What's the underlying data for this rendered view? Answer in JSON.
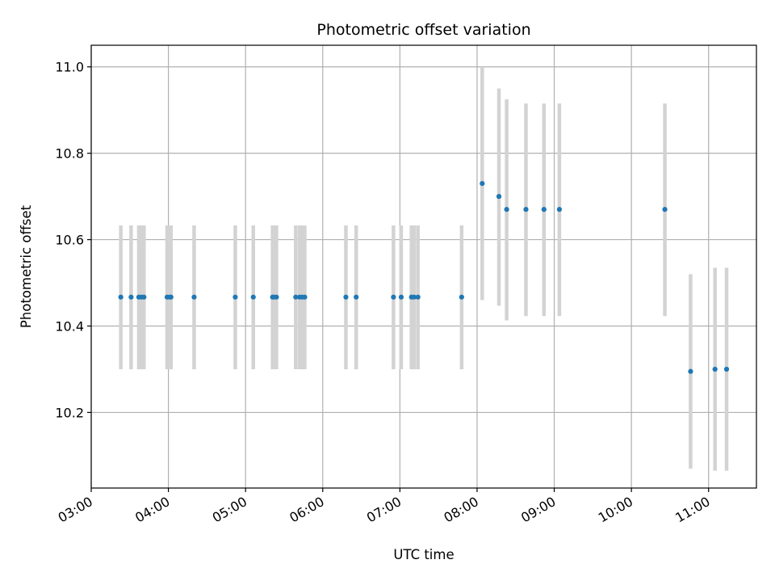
{
  "chart_data": {
    "type": "scatter",
    "title": "Photometric offset variation",
    "xlabel": "UTC time",
    "ylabel": "Photometric offset",
    "x_unit": "UTC hours",
    "xlim": [
      3.0,
      11.62
    ],
    "ylim": [
      10.025,
      11.05
    ],
    "x_ticks": [
      {
        "value": 3,
        "label": "03:00"
      },
      {
        "value": 4,
        "label": "04:00"
      },
      {
        "value": 5,
        "label": "05:00"
      },
      {
        "value": 6,
        "label": "06:00"
      },
      {
        "value": 7,
        "label": "07:00"
      },
      {
        "value": 8,
        "label": "08:00"
      },
      {
        "value": 9,
        "label": "09:00"
      },
      {
        "value": 10,
        "label": "10:00"
      },
      {
        "value": 11,
        "label": "11:00"
      }
    ],
    "y_ticks": [
      {
        "value": 10.2,
        "label": "10.2"
      },
      {
        "value": 10.4,
        "label": "10.4"
      },
      {
        "value": 10.6,
        "label": "10.6"
      },
      {
        "value": 10.8,
        "label": "10.8"
      },
      {
        "value": 11.0,
        "label": "11.0"
      }
    ],
    "grid": true,
    "marker_color": "#1f77b4",
    "errorbar_color": "#d3d3d3",
    "points": [
      {
        "time": "03:23",
        "y": 10.467,
        "ylow": 10.3,
        "yhigh": 10.633
      },
      {
        "time": "03:31",
        "y": 10.467,
        "ylow": 10.3,
        "yhigh": 10.633
      },
      {
        "time": "03:37",
        "y": 10.467,
        "ylow": 10.3,
        "yhigh": 10.633
      },
      {
        "time": "03:39",
        "y": 10.467,
        "ylow": 10.3,
        "yhigh": 10.633
      },
      {
        "time": "03:41",
        "y": 10.467,
        "ylow": 10.3,
        "yhigh": 10.633
      },
      {
        "time": "03:59",
        "y": 10.467,
        "ylow": 10.3,
        "yhigh": 10.633
      },
      {
        "time": "04:01",
        "y": 10.467,
        "ylow": 10.3,
        "yhigh": 10.633
      },
      {
        "time": "04:02",
        "y": 10.467,
        "ylow": 10.3,
        "yhigh": 10.633
      },
      {
        "time": "04:20",
        "y": 10.467,
        "ylow": 10.3,
        "yhigh": 10.633
      },
      {
        "time": "04:52",
        "y": 10.467,
        "ylow": 10.3,
        "yhigh": 10.633
      },
      {
        "time": "05:06",
        "y": 10.467,
        "ylow": 10.3,
        "yhigh": 10.633
      },
      {
        "time": "05:21",
        "y": 10.467,
        "ylow": 10.3,
        "yhigh": 10.633
      },
      {
        "time": "05:22",
        "y": 10.467,
        "ylow": 10.3,
        "yhigh": 10.633
      },
      {
        "time": "05:24",
        "y": 10.467,
        "ylow": 10.3,
        "yhigh": 10.633
      },
      {
        "time": "05:39",
        "y": 10.467,
        "ylow": 10.3,
        "yhigh": 10.633
      },
      {
        "time": "05:42",
        "y": 10.467,
        "ylow": 10.3,
        "yhigh": 10.633
      },
      {
        "time": "05:44",
        "y": 10.467,
        "ylow": 10.3,
        "yhigh": 10.633
      },
      {
        "time": "05:46",
        "y": 10.467,
        "ylow": 10.3,
        "yhigh": 10.633
      },
      {
        "time": "06:18",
        "y": 10.467,
        "ylow": 10.3,
        "yhigh": 10.633
      },
      {
        "time": "06:26",
        "y": 10.467,
        "ylow": 10.3,
        "yhigh": 10.633
      },
      {
        "time": "06:55",
        "y": 10.467,
        "ylow": 10.3,
        "yhigh": 10.633
      },
      {
        "time": "07:01",
        "y": 10.467,
        "ylow": 10.3,
        "yhigh": 10.633
      },
      {
        "time": "07:09",
        "y": 10.467,
        "ylow": 10.3,
        "yhigh": 10.633
      },
      {
        "time": "07:11",
        "y": 10.467,
        "ylow": 10.3,
        "yhigh": 10.633
      },
      {
        "time": "07:14",
        "y": 10.467,
        "ylow": 10.3,
        "yhigh": 10.633
      },
      {
        "time": "07:48",
        "y": 10.467,
        "ylow": 10.3,
        "yhigh": 10.633
      },
      {
        "time": "08:04",
        "y": 10.73,
        "ylow": 10.46,
        "yhigh": 11.0
      },
      {
        "time": "08:17",
        "y": 10.7,
        "ylow": 10.447,
        "yhigh": 10.95
      },
      {
        "time": "08:23",
        "y": 10.67,
        "ylow": 10.413,
        "yhigh": 10.925
      },
      {
        "time": "08:38",
        "y": 10.67,
        "ylow": 10.423,
        "yhigh": 10.915
      },
      {
        "time": "08:52",
        "y": 10.67,
        "ylow": 10.423,
        "yhigh": 10.915
      },
      {
        "time": "09:04",
        "y": 10.67,
        "ylow": 10.423,
        "yhigh": 10.915
      },
      {
        "time": "10:26",
        "y": 10.67,
        "ylow": 10.423,
        "yhigh": 10.915
      },
      {
        "time": "10:46",
        "y": 10.295,
        "ylow": 10.07,
        "yhigh": 10.52
      },
      {
        "time": "11:05",
        "y": 10.3,
        "ylow": 10.065,
        "yhigh": 10.535
      },
      {
        "time": "11:14",
        "y": 10.3,
        "ylow": 10.065,
        "yhigh": 10.535
      }
    ]
  }
}
